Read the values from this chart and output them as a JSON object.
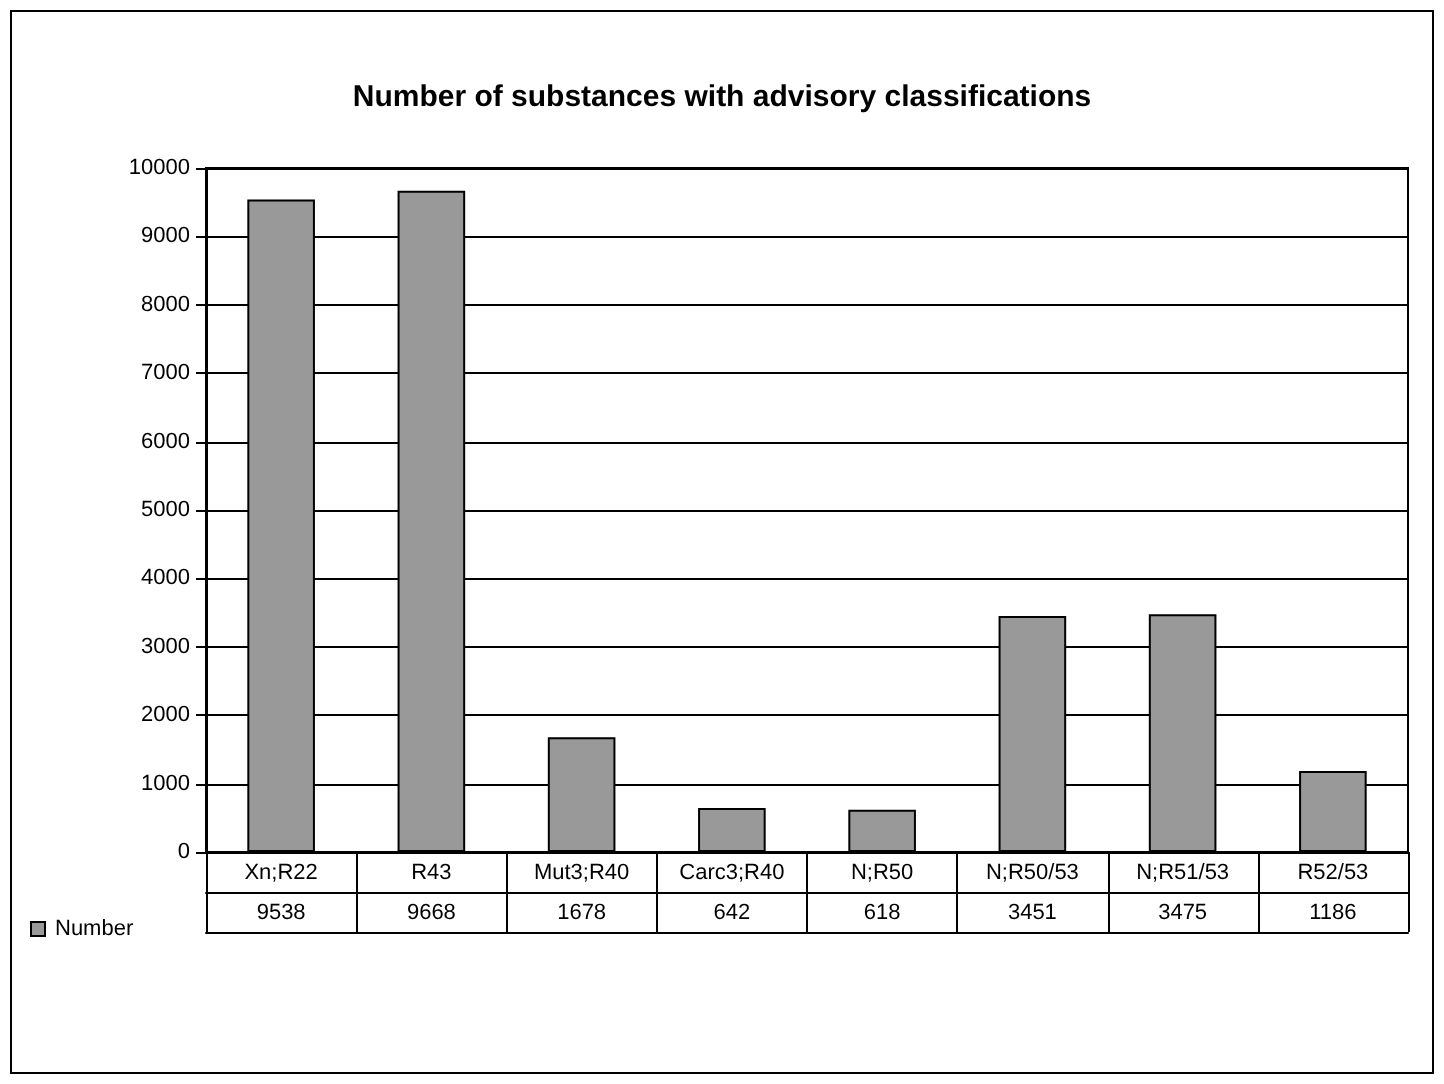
{
  "chart_data": {
    "type": "bar",
    "title": "Number of substances with advisory classifications",
    "categories": [
      "Xn;R22",
      "R43",
      "Mut3;R40",
      "Carc3;R40",
      "N;R50",
      "N;R50/53",
      "N;R51/53",
      "R52/53"
    ],
    "series": [
      {
        "name": "Number",
        "color": "#999999",
        "values": [
          9538,
          9668,
          1678,
          642,
          618,
          3451,
          3475,
          1186
        ]
      }
    ],
    "ylim": [
      0,
      10000
    ],
    "yticks": [
      0,
      1000,
      2000,
      3000,
      4000,
      5000,
      6000,
      7000,
      8000,
      9000,
      10000
    ],
    "grid": "y",
    "legend": "bottom left",
    "data_labels": true
  }
}
